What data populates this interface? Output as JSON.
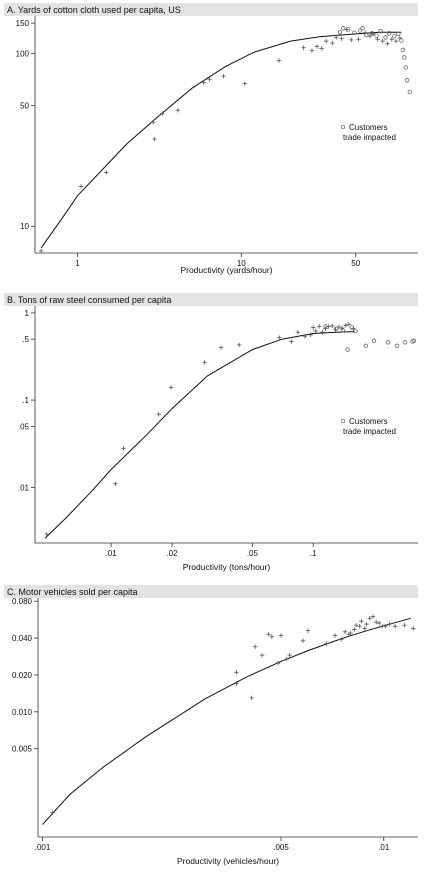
{
  "chart_data": [
    {
      "type": "scatter",
      "title": "A. Yards of cotton cloth used per capita, US",
      "xlabel": "Productivity (yards/hour)",
      "ylabel": "",
      "x_scale": "log",
      "y_scale": "log",
      "xlim": [
        0.55,
        120
      ],
      "ylim": [
        7,
        165
      ],
      "x_ticks": [
        {
          "v": 1,
          "label": "1"
        },
        {
          "v": 10,
          "label": "10"
        },
        {
          "v": 50,
          "label": "50"
        }
      ],
      "y_ticks": [
        {
          "v": 150,
          "label": "150"
        },
        {
          "v": 100,
          "label": "100"
        },
        {
          "v": 50,
          "label": "50"
        },
        {
          "v": 10,
          "label": "10"
        }
      ],
      "legend": {
        "label_lines": [
          "Customers",
          "trade impacted"
        ],
        "placement": "right-middle"
      },
      "curve": {
        "x": [
          0.6,
          0.8,
          1,
          1.5,
          2,
          3,
          5,
          8,
          12,
          20,
          30,
          50,
          70,
          95
        ],
        "y": [
          7.5,
          11,
          15,
          22.5,
          30,
          42,
          63,
          84,
          102,
          118,
          125,
          130,
          133,
          133
        ]
      },
      "series": [
        {
          "marker": "plus",
          "x": [
            0.6,
            1.05,
            1.5,
            2.9,
            2.95,
            3.3,
            4.1,
            5.9,
            6.4,
            7.8,
            10.5,
            17,
            24,
            27,
            29,
            31,
            33,
            36,
            38,
            41,
            44,
            47,
            52,
            57,
            61,
            64,
            68,
            73,
            78,
            83,
            88,
            93
          ],
          "y": [
            7.2,
            17,
            20.5,
            40,
            32,
            45,
            47,
            68,
            71,
            74,
            67,
            91,
            108,
            104,
            110,
            107,
            118,
            115,
            124,
            122,
            138,
            120,
            121,
            132,
            126,
            130,
            121,
            118,
            114,
            121,
            118,
            123
          ]
        },
        {
          "marker": "circle",
          "x": [
            40,
            42,
            45,
            49,
            53,
            55,
            58,
            63,
            67,
            71,
            76,
            80,
            86,
            91,
            95,
            97,
            99,
            101,
            103,
            107
          ],
          "y": [
            133,
            140,
            138,
            132,
            136,
            140,
            128,
            131,
            127,
            135,
            124,
            131,
            126,
            130,
            119,
            105,
            95,
            83,
            70,
            60
          ]
        }
      ]
    },
    {
      "type": "scatter",
      "title": "B. Tons of raw steel consumed per capita",
      "xlabel": "Productivity (tons/hour)",
      "ylabel": "",
      "x_scale": "log",
      "y_scale": "log",
      "xlim": [
        0.0042,
        0.33
      ],
      "ylim": [
        0.0023,
        1.2
      ],
      "x_ticks": [
        {
          "v": 0.01,
          "label": ".01"
        },
        {
          "v": 0.02,
          "label": ".02"
        },
        {
          "v": 0.05,
          "label": ".05"
        },
        {
          "v": 0.1,
          "label": ".1"
        }
      ],
      "y_ticks": [
        {
          "v": 1,
          "label": "1"
        },
        {
          "v": 0.5,
          "label": ".5"
        },
        {
          "v": 0.1,
          "label": ".1"
        },
        {
          "v": 0.05,
          "label": ".05"
        },
        {
          "v": 0.01,
          "label": ".01"
        }
      ],
      "legend": {
        "label_lines": [
          "Customers",
          "trade impacted"
        ],
        "placement": "right-middle"
      },
      "curve": {
        "x": [
          0.0047,
          0.006,
          0.008,
          0.01,
          0.015,
          0.02,
          0.03,
          0.05,
          0.07,
          0.1,
          0.13,
          0.16
        ],
        "y": [
          0.0026,
          0.0045,
          0.009,
          0.016,
          0.04,
          0.08,
          0.19,
          0.38,
          0.5,
          0.58,
          0.6,
          0.61
        ]
      },
      "series": [
        {
          "marker": "plus",
          "x": [
            0.0048,
            0.0105,
            0.0115,
            0.0172,
            0.0198,
            0.029,
            0.035,
            0.043,
            0.068,
            0.078,
            0.084,
            0.091,
            0.097,
            0.1,
            0.103,
            0.107,
            0.111,
            0.115,
            0.119,
            0.124,
            0.129,
            0.134,
            0.139,
            0.145,
            0.15,
            0.158
          ],
          "y": [
            0.0029,
            0.011,
            0.028,
            0.069,
            0.14,
            0.27,
            0.4,
            0.43,
            0.52,
            0.47,
            0.6,
            0.54,
            0.56,
            0.68,
            0.62,
            0.7,
            0.6,
            0.66,
            0.7,
            0.71,
            0.64,
            0.69,
            0.67,
            0.72,
            0.74,
            0.66
          ]
        },
        {
          "marker": "circle",
          "x": [
            0.115,
            0.13,
            0.14,
            0.148,
            0.155,
            0.162,
            0.182,
            0.2,
            0.235,
            0.26,
            0.285,
            0.31,
            0.315
          ],
          "y": [
            0.7,
            0.66,
            0.63,
            0.38,
            0.68,
            0.62,
            0.42,
            0.48,
            0.46,
            0.42,
            0.46,
            0.47,
            0.48
          ]
        }
      ]
    },
    {
      "type": "scatter",
      "title": "C. Motor vehicles sold per capita",
      "xlabel": "Productivity (vehicles/hour)",
      "ylabel": "",
      "x_scale": "log",
      "y_scale": "log",
      "xlim": [
        0.00097,
        0.0126
      ],
      "ylim": [
        0.00095,
        0.085
      ],
      "x_ticks": [
        {
          "v": 0.001,
          "label": ".001"
        },
        {
          "v": 0.005,
          "label": ".005"
        },
        {
          "v": 0.01,
          "label": ".01"
        }
      ],
      "y_ticks": [
        {
          "v": 0.08,
          "label": "0.080"
        },
        {
          "v": 0.04,
          "label": "0.040"
        },
        {
          "v": 0.02,
          "label": "0.020"
        },
        {
          "v": 0.01,
          "label": "0.010"
        },
        {
          "v": 0.005,
          "label": "0.005"
        }
      ],
      "legend": null,
      "curve": {
        "x": [
          0.001,
          0.0012,
          0.0015,
          0.002,
          0.003,
          0.004,
          0.005,
          0.006,
          0.007,
          0.008,
          0.009,
          0.01,
          0.011,
          0.012
        ],
        "y": [
          0.0012,
          0.0021,
          0.0035,
          0.0062,
          0.0128,
          0.0195,
          0.0258,
          0.0316,
          0.0369,
          0.0418,
          0.0463,
          0.0504,
          0.0543,
          0.058
        ]
      },
      "series": [
        {
          "marker": "plus",
          "x": [
            0.00107,
            0.0037,
            0.0037,
            0.0041,
            0.0042,
            0.0044,
            0.0046,
            0.0047,
            0.0049,
            0.005,
            0.0052,
            0.0053,
            0.0058,
            0.006,
            0.0068,
            0.0072,
            0.0075,
            0.0077,
            0.0079,
            0.008,
            0.0082,
            0.0083,
            0.0085,
            0.0086,
            0.0088,
            0.0089,
            0.0091,
            0.0093,
            0.0095,
            0.0097,
            0.0099,
            0.0101,
            0.0104,
            0.0108,
            0.0115,
            0.0122
          ],
          "y": [
            0.0015,
            0.021,
            0.017,
            0.013,
            0.034,
            0.029,
            0.043,
            0.041,
            0.025,
            0.042,
            0.027,
            0.029,
            0.038,
            0.046,
            0.036,
            0.042,
            0.039,
            0.045,
            0.043,
            0.044,
            0.047,
            0.051,
            0.05,
            0.055,
            0.048,
            0.052,
            0.058,
            0.06,
            0.054,
            0.053,
            0.05,
            0.05,
            0.052,
            0.05,
            0.051,
            0.048
          ]
        }
      ]
    }
  ]
}
